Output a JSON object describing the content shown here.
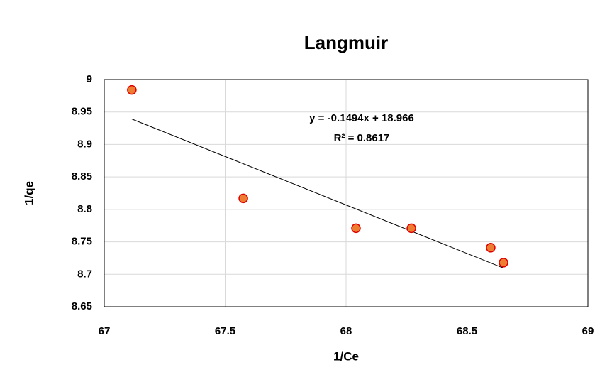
{
  "chart_data": {
    "type": "scatter",
    "title": "Langmuir",
    "x_label": "1/Ce",
    "y_label": "1/qe",
    "series": [
      {
        "name": "1/qe",
        "color": "#ed7d31",
        "edge_color": "#e00000",
        "x": [
          67.114,
          67.575,
          68.041,
          68.27,
          68.598,
          68.651
        ],
        "values": [
          8.984,
          8.817,
          8.771,
          8.771,
          8.741,
          8.718
        ]
      }
    ],
    "trendline": {
      "slope": -0.1494,
      "intercept": 18.966,
      "equation": "y = -0.1494x + 18.966",
      "r_squared": "R² = 0.8617",
      "color": "#000000"
    },
    "xlim": [
      67,
      69
    ],
    "xticks": [
      67,
      67.5,
      68,
      68.5,
      69
    ],
    "ylim": [
      8.65,
      9
    ],
    "yticks": [
      8.65,
      8.7,
      8.75,
      8.8,
      8.85,
      8.9,
      8.95,
      9
    ],
    "grid": true
  }
}
